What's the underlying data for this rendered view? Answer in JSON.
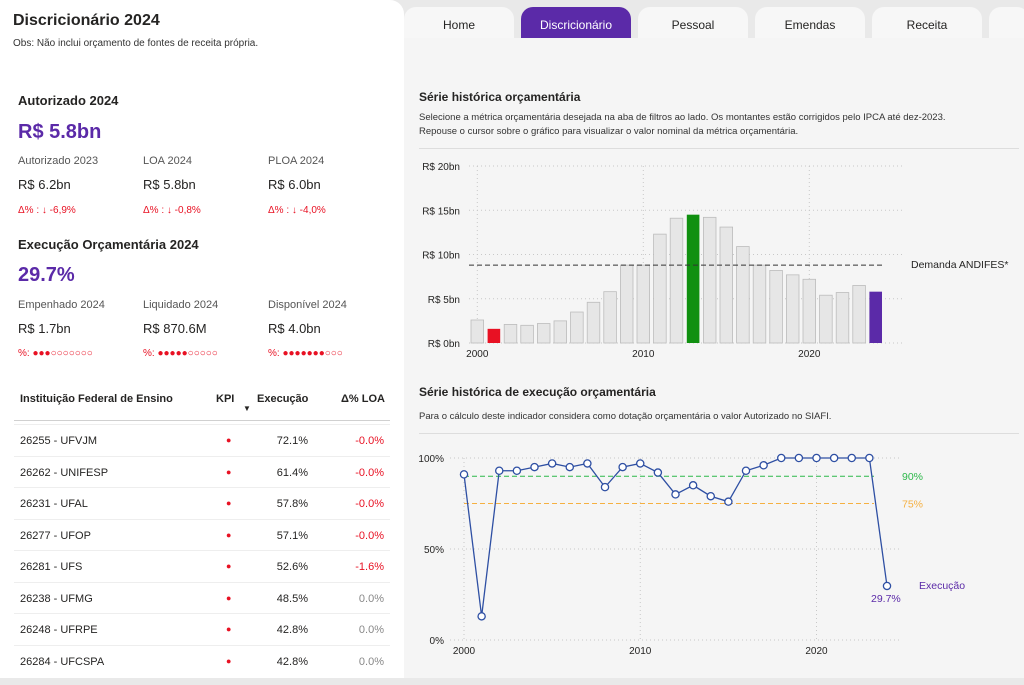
{
  "header": {
    "title": "Discricionário 2024",
    "obs": "Obs: Não inclui orçamento de fontes de receita própria."
  },
  "tabs": [
    {
      "label": "Home"
    },
    {
      "label": "Discricionário"
    },
    {
      "label": "Pessoal"
    },
    {
      "label": "Emendas"
    },
    {
      "label": "Receita"
    }
  ],
  "autorizado": {
    "title": "Autorizado 2024",
    "value": "R$ 5.8bn",
    "items": [
      {
        "label": "Autorizado 2023",
        "value": "R$ 6.2bn",
        "delta": "Δ% : ↓ -6,9%"
      },
      {
        "label": "LOA 2024",
        "value": "R$ 5.8bn",
        "delta": "Δ% : ↓ -0,8%"
      },
      {
        "label": "PLOA 2024",
        "value": "R$ 6.0bn",
        "delta": "Δ% : ↓ -4,0%"
      }
    ]
  },
  "execucao": {
    "title": "Execução Orçamentária 2024",
    "value": "29.7%",
    "items": [
      {
        "label": "Empenhado 2024",
        "value": "R$ 1.7bn",
        "delta": "%: ●●●○○○○○○○"
      },
      {
        "label": "Liquidado 2024",
        "value": "R$ 870.6M",
        "delta": "%: ●●●●●○○○○○"
      },
      {
        "label": "Disponível 2024",
        "value": "R$ 4.0bn",
        "delta": "%: ●●●●●●●○○○"
      }
    ]
  },
  "table": {
    "headers": [
      "Instituição Federal de Ensino",
      "KPI",
      "Execução",
      "Δ% LOA"
    ],
    "rows": [
      {
        "name": "26255 - UFVJM",
        "kpi": "●",
        "exec": "72.1%",
        "loa": "-0.0%"
      },
      {
        "name": "26262 - UNIFESP",
        "kpi": "●",
        "exec": "61.4%",
        "loa": "-0.0%"
      },
      {
        "name": "26231 - UFAL",
        "kpi": "●",
        "exec": "57.8%",
        "loa": "-0.0%"
      },
      {
        "name": "26277 - UFOP",
        "kpi": "●",
        "exec": "57.1%",
        "loa": "-0.0%"
      },
      {
        "name": "26281 - UFS",
        "kpi": "●",
        "exec": "52.6%",
        "loa": "-1.6%"
      },
      {
        "name": "26238 - UFMG",
        "kpi": "●",
        "exec": "48.5%",
        "loa": "0.0%"
      },
      {
        "name": "26248 - UFRPE",
        "kpi": "●",
        "exec": "42.8%",
        "loa": "0.0%"
      },
      {
        "name": "26284 - UFCSPA",
        "kpi": "●",
        "exec": "42.8%",
        "loa": "0.0%"
      }
    ]
  },
  "charts": {
    "bar": {
      "title": "Série histórica orçamentária",
      "desc": "Selecione a métrica orçamentária desejada na aba de filtros ao lado. Os montantes estão corrigidos pelo IPCA até dez-2023. Repouse o cursor sobre o gráfico para visualizar o valor nominal da métrica orçamentária."
    },
    "line": {
      "title": "Série histórica de execução orçamentária",
      "desc": "Para o cálculo deste indicador considera como dotação orçamentária o valor Autorizado no SIAFI."
    }
  },
  "chart_data": [
    {
      "type": "bar",
      "x": [
        2000,
        2001,
        2002,
        2003,
        2004,
        2005,
        2006,
        2007,
        2008,
        2009,
        2010,
        2011,
        2012,
        2013,
        2014,
        2015,
        2016,
        2017,
        2018,
        2019,
        2020,
        2021,
        2022,
        2023,
        2024
      ],
      "values": [
        2.6,
        1.6,
        2.1,
        2.0,
        2.2,
        2.5,
        3.5,
        4.6,
        5.8,
        8.8,
        8.8,
        12.3,
        14.1,
        14.5,
        14.2,
        13.1,
        10.9,
        8.8,
        8.2,
        7.7,
        7.2,
        5.4,
        5.7,
        6.5,
        5.8
      ],
      "highlight": {
        "2001": "#e81123",
        "2013": "#109010",
        "2024": "#5b2aa8"
      },
      "yticks": [
        "R$ 0bn",
        "R$ 5bn",
        "R$ 10bn",
        "R$ 15bn",
        "R$ 20bn"
      ],
      "xticks": [
        "2000",
        "2010",
        "2020"
      ],
      "ylim": [
        0,
        20
      ],
      "reference": {
        "value": 8.8,
        "label": "Demanda ANDIFES*"
      }
    },
    {
      "type": "line",
      "x": [
        2000,
        2001,
        2002,
        2003,
        2004,
        2005,
        2006,
        2007,
        2008,
        2009,
        2010,
        2011,
        2012,
        2013,
        2014,
        2015,
        2016,
        2017,
        2018,
        2019,
        2020,
        2021,
        2022,
        2023,
        2024
      ],
      "values": [
        91,
        13,
        93,
        93,
        95,
        97,
        95,
        97,
        84,
        95,
        97,
        92,
        80,
        85,
        79,
        76,
        93,
        96,
        100,
        100,
        100,
        100,
        100,
        100,
        29.7
      ],
      "series_label": "Execução",
      "last_label": "29.7%",
      "yticks": [
        "0%",
        "50%",
        "100%"
      ],
      "xticks": [
        "2000",
        "2010",
        "2020"
      ],
      "ylim": [
        0,
        100
      ],
      "refs": [
        {
          "value": 90,
          "label": "90%",
          "color": "#2db84a"
        },
        {
          "value": 75,
          "label": "75%",
          "color": "#f5b041"
        }
      ]
    }
  ]
}
